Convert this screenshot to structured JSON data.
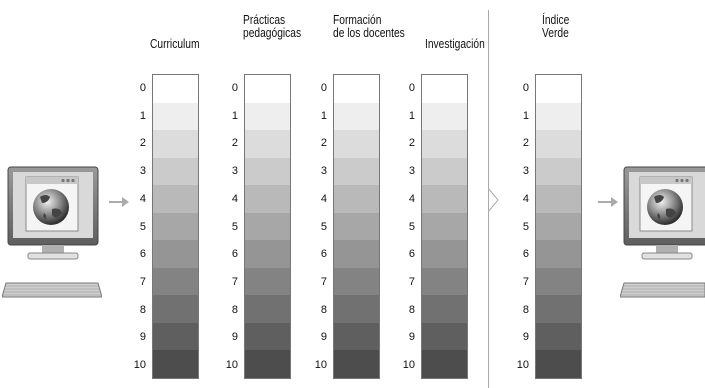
{
  "columns": [
    {
      "title_lines": [
        "Curriculum"
      ]
    },
    {
      "title_lines": [
        "Prácticas",
        "pedagógicas"
      ]
    },
    {
      "title_lines": [
        "Formación",
        "de los docentes"
      ]
    },
    {
      "title_lines": [
        "Investigación"
      ]
    },
    {
      "title_lines": [
        "Índice",
        "Verde"
      ]
    }
  ],
  "scale_levels": [
    "0",
    "1",
    "2",
    "3",
    "4",
    "5",
    "6",
    "7",
    "8",
    "9",
    "10"
  ],
  "colors": {
    "level_shades": [
      "#ffffff",
      "#eeeeee",
      "#dcdcdc",
      "#cbcbcb",
      "#b9b9b9",
      "#a7a7a7",
      "#959595",
      "#838383",
      "#717171",
      "#5f5f5f",
      "#4d4d4d"
    ],
    "arrow": "#aaaaaa",
    "scale_border": "#777777"
  },
  "icons": {
    "left_computer": "computer-globe-icon",
    "right_computer": "computer-globe-icon",
    "arrows": "right-arrow-icon"
  }
}
